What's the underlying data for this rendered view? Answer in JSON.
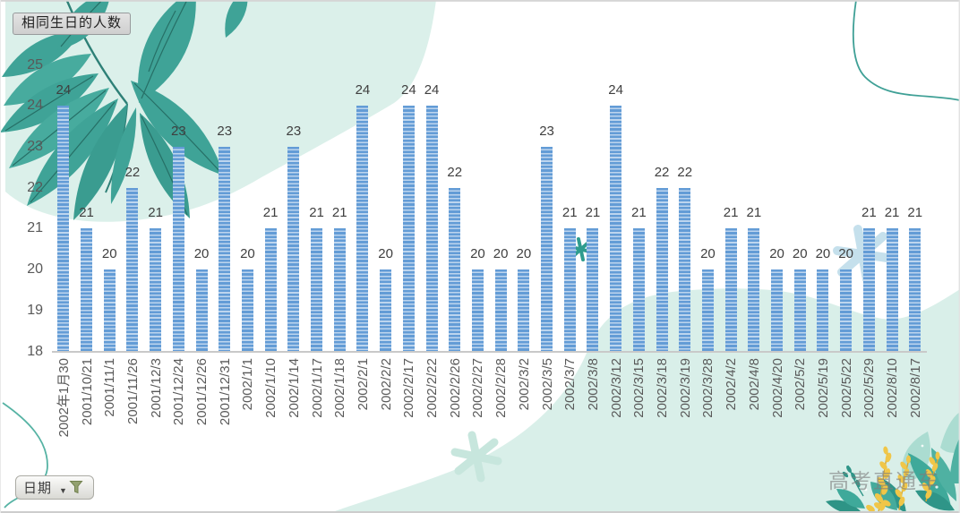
{
  "watermark": "高考直通车",
  "chart_data": {
    "type": "bar",
    "title": "相同生日的人数",
    "field_button": "日期",
    "categories": [
      "2002年1月30",
      "2001/10/21",
      "2001/11/1",
      "2001/11/26",
      "2001/12/3",
      "2001/12/24",
      "2001/12/26",
      "2001/12/31",
      "2002/1/1",
      "2002/1/10",
      "2002/1/14",
      "2002/1/17",
      "2002/1/18",
      "2002/2/1",
      "2002/2/2",
      "2002/2/17",
      "2002/2/22",
      "2002/2/26",
      "2002/2/27",
      "2002/2/28",
      "2002/3/2",
      "2002/3/5",
      "2002/3/7",
      "2002/3/8",
      "2002/3/12",
      "2002/3/15",
      "2002/3/18",
      "2002/3/19",
      "2002/3/28",
      "2002/4/2",
      "2002/4/8",
      "2002/4/20",
      "2002/5/2",
      "2002/5/19",
      "2002/5/22",
      "2002/5/29",
      "2002/8/10",
      "2002/8/17"
    ],
    "values": [
      24,
      21,
      20,
      22,
      21,
      23,
      20,
      23,
      20,
      21,
      23,
      21,
      21,
      24,
      20,
      24,
      24,
      22,
      20,
      20,
      20,
      23,
      21,
      21,
      24,
      21,
      22,
      22,
      20,
      21,
      21,
      20,
      20,
      20,
      20,
      21,
      21,
      21
    ],
    "xlabel": "",
    "ylabel": "",
    "ylim": [
      18,
      25
    ],
    "yticks": [
      18,
      19,
      20,
      21,
      22,
      23,
      24,
      25
    ],
    "grid": false,
    "legend": false,
    "bar_stripe_dark": "#639CD6",
    "bar_stripe_light": "#BDD5EE",
    "data_label_color": "#3F3F3F",
    "axis_color": "#C9C9C9",
    "tick_label_color": "#595959"
  },
  "decor": {
    "mint_color": "#DBF0EA",
    "leaf_color": "#3FA397",
    "wheat_color": "#F0C648"
  }
}
